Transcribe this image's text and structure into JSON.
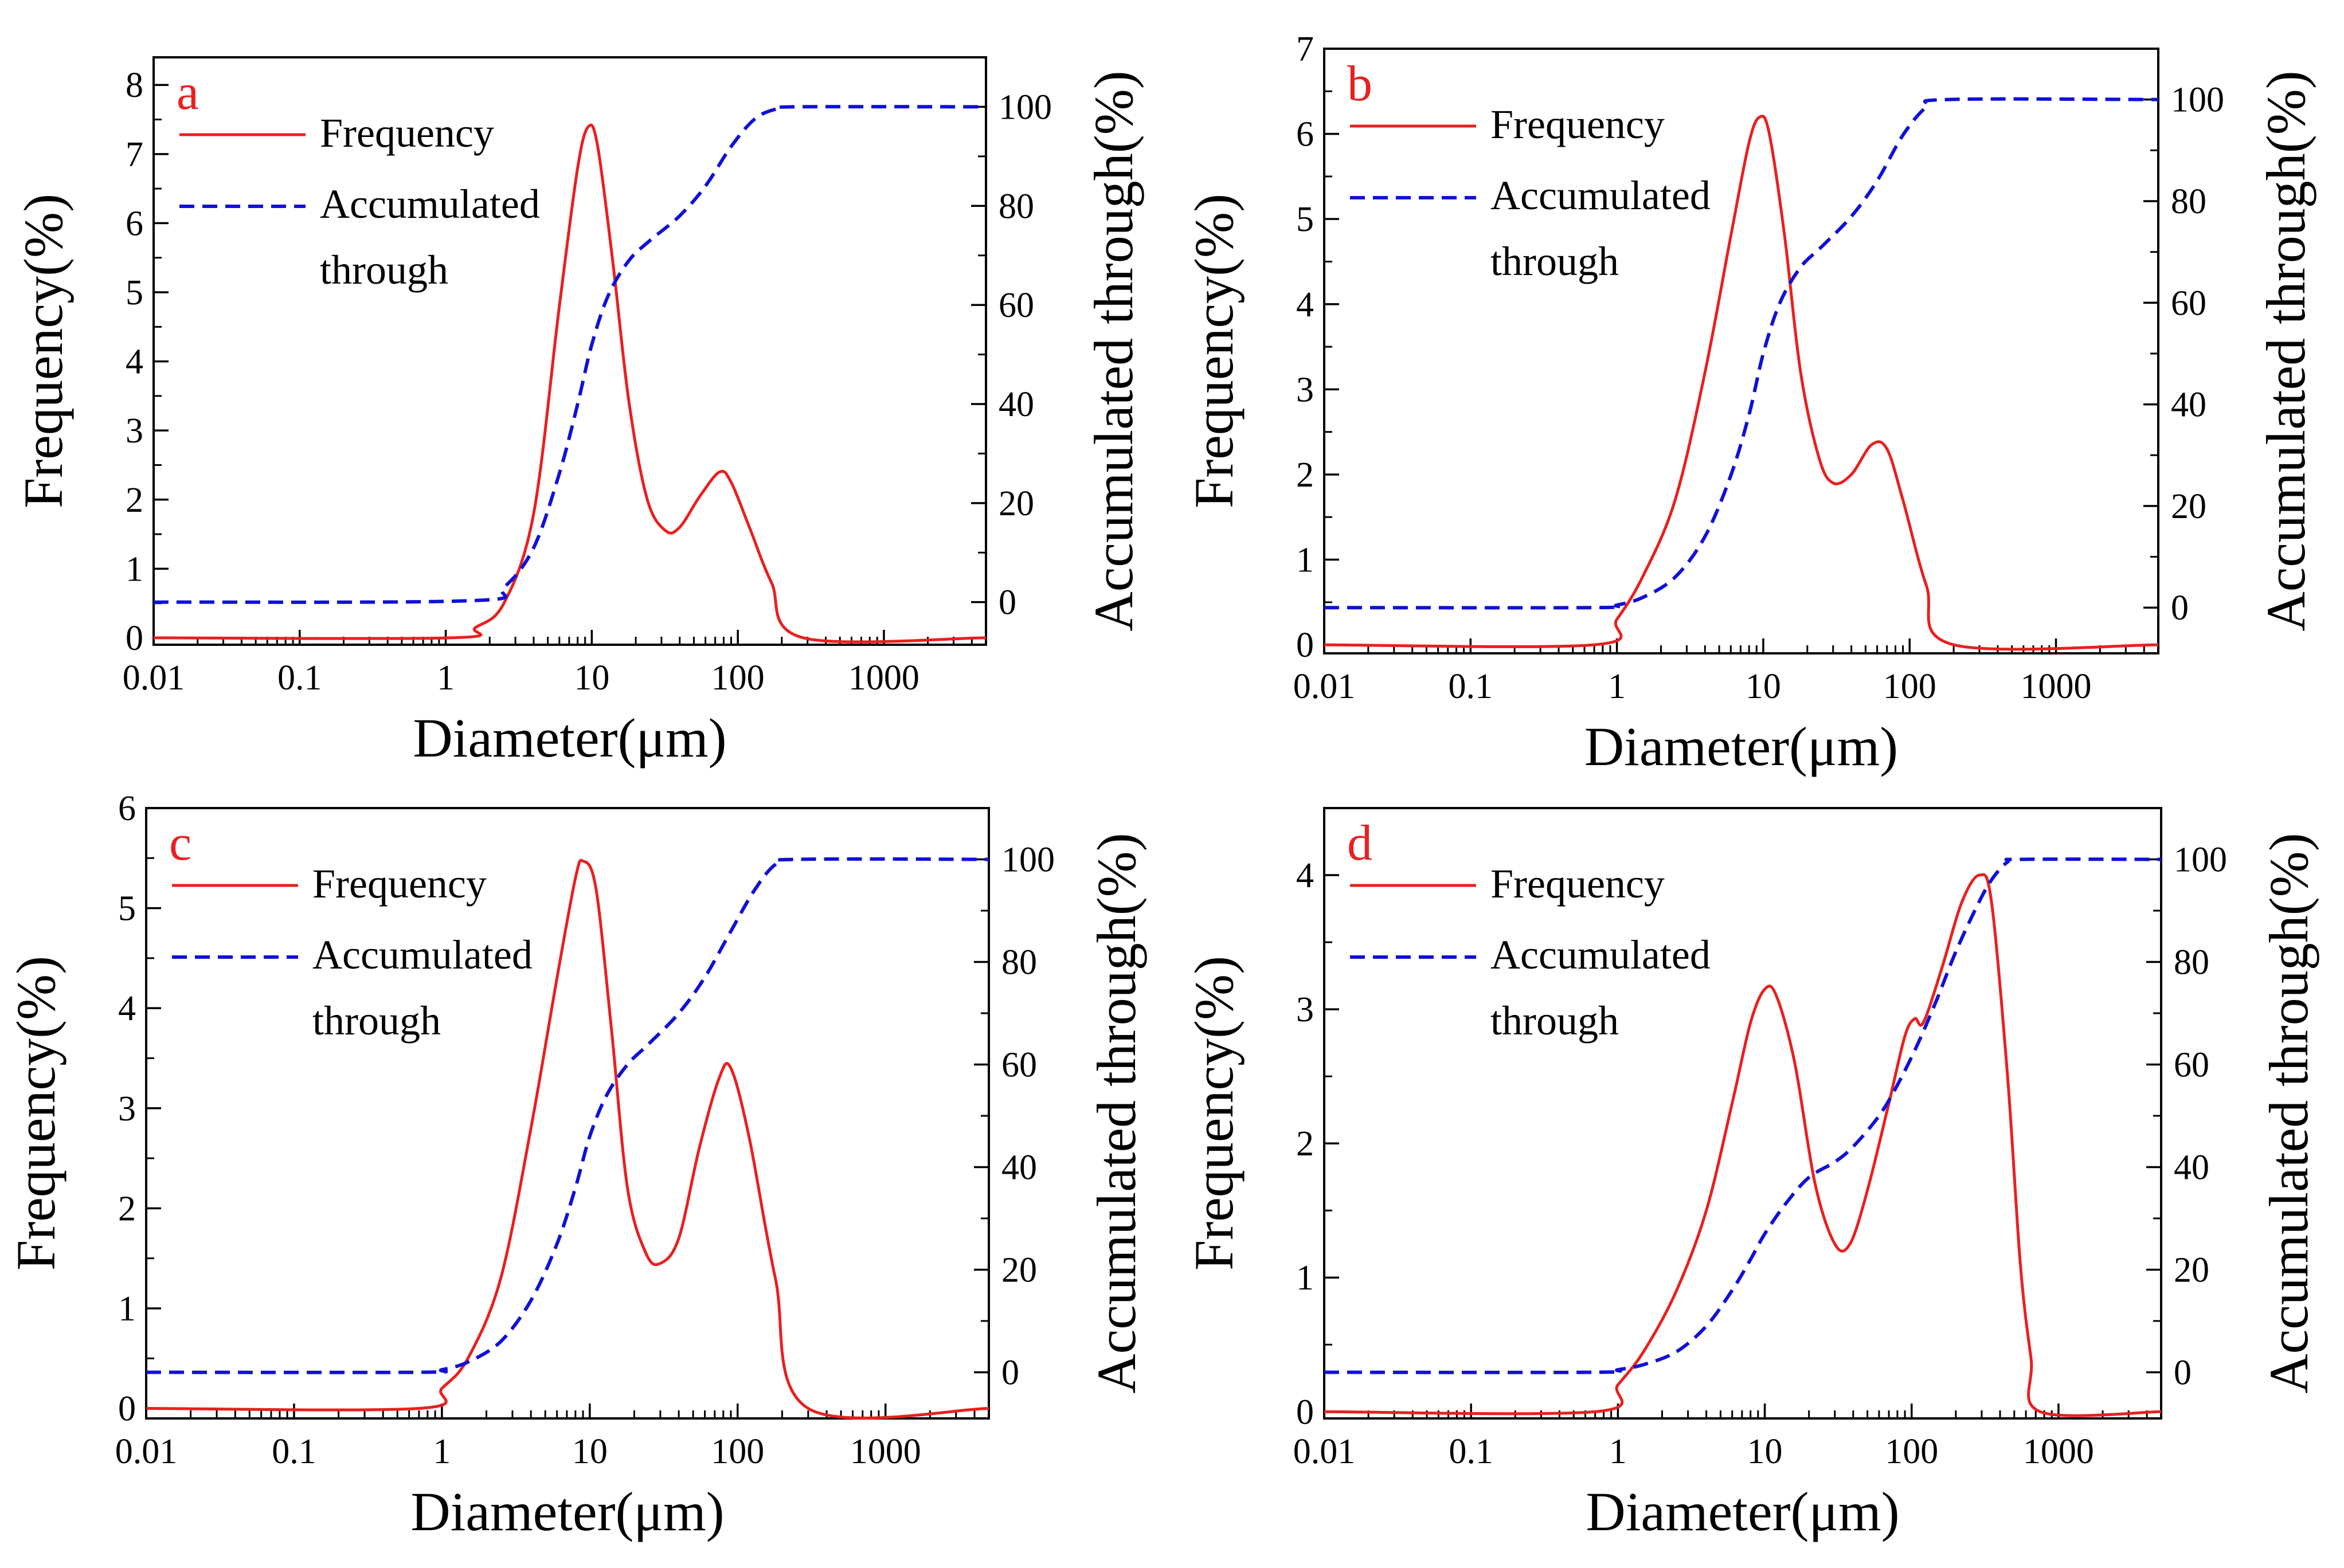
{
  "colors": {
    "frequency": "#e8201f",
    "accumulated": "#1010d8",
    "panel_label": "#e8201f",
    "axis": "#000000"
  },
  "chart_data": [
    {
      "panel": "a",
      "type": "line",
      "x_scale": "log",
      "xlim": [
        0.01,
        5000
      ],
      "x_ticks": [
        "0.01",
        "0.1",
        "1",
        "10",
        "100",
        "1000"
      ],
      "xlabel": "Diameter(μm)",
      "ylabel_left": "Frequency(%)",
      "ylabel_right": "Accumulated through(%)",
      "ylim_left": [
        -0.1,
        8.4
      ],
      "y_ticks_left": [
        "0",
        "1",
        "2",
        "3",
        "4",
        "5",
        "6",
        "7",
        "8"
      ],
      "ylim_right": [
        -8.6,
        110
      ],
      "y_ticks_right": [
        "0",
        "20",
        "40",
        "60",
        "80",
        "100"
      ],
      "legend_location": "top-left",
      "legend": [
        "Frequency",
        "Accumulated through"
      ],
      "series": [
        {
          "name": "Frequency",
          "axis": "left",
          "style": "solid",
          "x": [
            0.01,
            1.1,
            1.6,
            2.5,
            4,
            6,
            8,
            9.5,
            11,
            14,
            18,
            24,
            32,
            40,
            55,
            75,
            90,
            120,
            170,
            280,
            5000
          ],
          "y": [
            0,
            0,
            0.15,
            0.5,
            1.8,
            4.8,
            6.8,
            7.4,
            7.1,
            5.4,
            3.4,
            2.0,
            1.55,
            1.6,
            2.05,
            2.4,
            2.25,
            1.6,
            0.8,
            0,
            0
          ]
        },
        {
          "name": "Accumulated through",
          "axis": "right",
          "style": "dashed",
          "x": [
            0.01,
            1.5,
            2.5,
            4,
            6,
            8,
            10,
            13,
            18,
            25,
            40,
            60,
            90,
            130,
            180,
            250,
            5000
          ],
          "y": [
            0,
            0.3,
            3,
            11,
            26,
            40,
            52,
            62,
            69,
            73,
            78,
            84,
            92,
            97.5,
            99.5,
            100,
            100
          ]
        }
      ]
    },
    {
      "panel": "b",
      "type": "line",
      "x_scale": "log",
      "xlim": [
        0.01,
        5000
      ],
      "x_ticks": [
        "0.01",
        "0.1",
        "1",
        "10",
        "100",
        "1000"
      ],
      "xlabel": "Diameter(μm)",
      "ylabel_left": "Frequency(%)",
      "ylabel_right": "Accumulated through(%)",
      "ylim_left": [
        -0.1,
        7
      ],
      "y_ticks_left": [
        "0",
        "1",
        "2",
        "3",
        "4",
        "5",
        "6",
        "7"
      ],
      "ylim_right": [
        -9,
        110
      ],
      "y_ticks_right": [
        "0",
        "20",
        "40",
        "60",
        "80",
        "100"
      ],
      "legend_location": "top-left",
      "legend": [
        "Frequency",
        "Accumulated through"
      ],
      "series": [
        {
          "name": "Frequency",
          "axis": "left",
          "style": "solid",
          "x": [
            0.01,
            0.7,
            1,
            1.5,
            2.5,
            4,
            6,
            8,
            9.5,
            11,
            14,
            18,
            24,
            30,
            40,
            55,
            70,
            90,
            130,
            200,
            5000
          ],
          "y": [
            0,
            0,
            0.3,
            0.8,
            1.7,
            3.2,
            4.8,
            5.9,
            6.2,
            6.0,
            4.8,
            3.2,
            2.2,
            1.9,
            2.0,
            2.35,
            2.3,
            1.7,
            0.7,
            0,
            0
          ]
        },
        {
          "name": "Accumulated through",
          "axis": "right",
          "style": "dashed",
          "x": [
            0.01,
            0.7,
            1,
            1.5,
            2.5,
            4,
            6,
            8,
            10,
            13,
            18,
            25,
            40,
            60,
            90,
            130,
            180,
            5000
          ],
          "y": [
            0,
            0,
            0.5,
            2,
            6,
            14,
            26,
            38,
            50,
            60,
            67,
            71,
            77,
            84,
            93,
            98.5,
            100,
            100
          ]
        }
      ]
    },
    {
      "panel": "c",
      "type": "line",
      "x_scale": "log",
      "xlim": [
        0.01,
        5000
      ],
      "x_ticks": [
        "0.01",
        "0.1",
        "1",
        "10",
        "100",
        "1000"
      ],
      "xlabel": "Diameter(μm)",
      "ylabel_left": "Frequency(%)",
      "ylabel_right": "Accumulated through(%)",
      "ylim_left": [
        -0.1,
        6
      ],
      "y_ticks_left": [
        "0",
        "1",
        "2",
        "3",
        "4",
        "5",
        "6"
      ],
      "ylim_right": [
        -9,
        110
      ],
      "y_ticks_right": [
        "0",
        "20",
        "40",
        "60",
        "80",
        "100"
      ],
      "legend_location": "top-left",
      "legend": [
        "Frequency",
        "Accumulated through"
      ],
      "series": [
        {
          "name": "Frequency",
          "axis": "left",
          "style": "solid",
          "x": [
            0.01,
            0.7,
            1,
            1.5,
            2.5,
            4,
            6,
            8,
            9,
            11,
            14,
            18,
            24,
            30,
            40,
            55,
            75,
            90,
            120,
            180,
            300,
            5000
          ],
          "y": [
            0,
            0,
            0.2,
            0.5,
            1.3,
            2.8,
            4.3,
            5.3,
            5.47,
            5.2,
            3.8,
            2.2,
            1.55,
            1.45,
            1.7,
            2.6,
            3.3,
            3.4,
            2.7,
            1.3,
            0,
            0
          ]
        },
        {
          "name": "Accumulated through",
          "axis": "right",
          "style": "dashed",
          "x": [
            0.01,
            0.7,
            1,
            1.5,
            2.5,
            4,
            6,
            8,
            10,
            13,
            18,
            25,
            40,
            60,
            90,
            130,
            180,
            250,
            5000
          ],
          "y": [
            0,
            0,
            0.5,
            2,
            6,
            14,
            25,
            36,
            46,
            54,
            60,
            64,
            70,
            77,
            86,
            94,
            99,
            100,
            100
          ]
        }
      ]
    },
    {
      "panel": "d",
      "type": "line",
      "x_scale": "log",
      "xlim": [
        0.01,
        5000
      ],
      "x_ticks": [
        "0.01",
        "0.1",
        "1",
        "10",
        "100",
        "1000"
      ],
      "xlabel": "Diameter(μm)",
      "ylabel_left": "Frequency(%)",
      "ylabel_right": "Accumulated through(%)",
      "ylim_left": [
        -0.05,
        4.5
      ],
      "y_ticks_left": [
        "0",
        "1",
        "2",
        "3",
        "4"
      ],
      "ylim_right": [
        -9,
        110
      ],
      "y_ticks_right": [
        "0",
        "20",
        "40",
        "60",
        "80",
        "100"
      ],
      "legend_location": "top-left",
      "legend": [
        "Frequency",
        "Accumulated through"
      ],
      "series": [
        {
          "name": "Frequency",
          "axis": "left",
          "style": "solid",
          "x": [
            0.01,
            0.7,
            1,
            1.5,
            2.5,
            4,
            6,
            8,
            10,
            12,
            16,
            22,
            30,
            38,
            50,
            70,
            90,
            105,
            120,
            160,
            220,
            290,
            350,
            450,
            550,
            650,
            750,
            5000
          ],
          "y": [
            0,
            0,
            0.2,
            0.45,
            0.9,
            1.5,
            2.3,
            2.9,
            3.15,
            3.1,
            2.6,
            1.7,
            1.25,
            1.25,
            1.65,
            2.3,
            2.8,
            2.93,
            2.9,
            3.3,
            3.8,
            4.0,
            3.8,
            2.5,
            1.1,
            0.4,
            0,
            0
          ]
        },
        {
          "name": "Accumulated through",
          "axis": "right",
          "style": "dashed",
          "x": [
            0.01,
            0.7,
            1,
            1.5,
            2.5,
            4,
            6,
            8,
            10,
            14,
            20,
            30,
            40,
            60,
            80,
            110,
            150,
            200,
            280,
            350,
            450,
            550,
            5000
          ],
          "y": [
            0,
            0,
            0.5,
            1.5,
            4,
            9,
            16,
            22,
            27,
            33,
            38,
            41,
            44,
            50,
            56,
            64,
            73,
            82,
            91,
            96,
            99.5,
            100,
            100
          ]
        }
      ]
    }
  ]
}
